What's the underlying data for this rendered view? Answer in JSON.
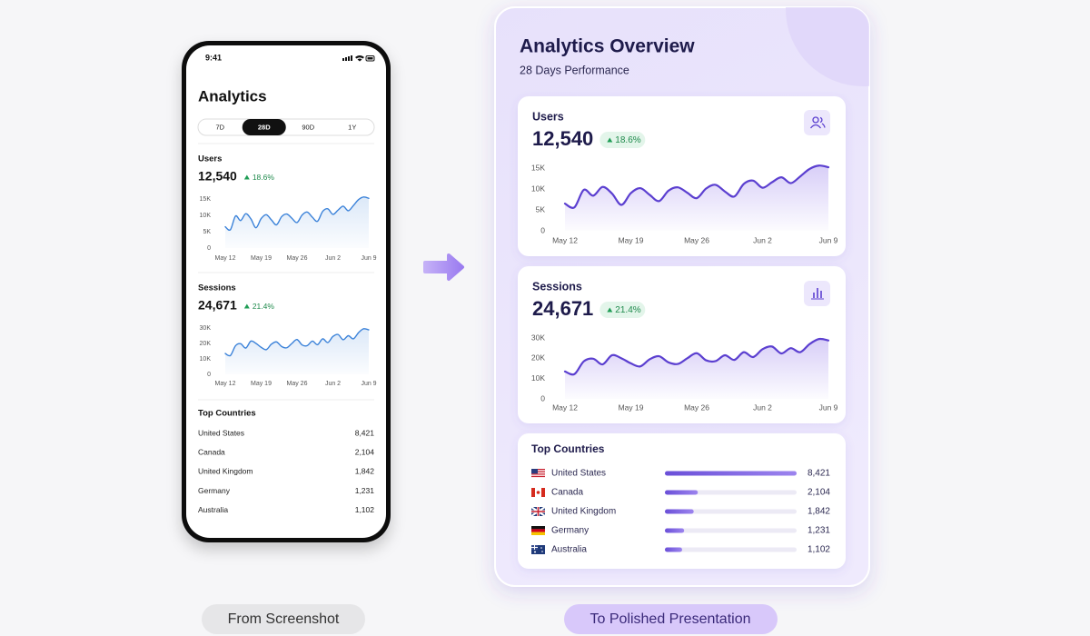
{
  "phone": {
    "time": "9:41",
    "title": "Analytics",
    "tabs": [
      "7D",
      "28D",
      "90D",
      "1Y"
    ],
    "active_tab": 1
  },
  "presentation": {
    "title": "Analytics Overview",
    "subtitle": "28 Days Performance"
  },
  "chart_data": [
    {
      "type": "line",
      "title": "Users",
      "total": "12,540",
      "change": "18.6%",
      "color": "#5b3fd0",
      "phone_color": "#3b82d9",
      "categories": [
        "May 12",
        null,
        null,
        null,
        null,
        null,
        null,
        "May 19",
        null,
        null,
        null,
        null,
        null,
        null,
        "May 26",
        null,
        null,
        null,
        null,
        null,
        null,
        "Jun 2",
        null,
        null,
        null,
        null,
        null,
        null,
        "Jun 9"
      ],
      "values": [
        6500,
        5600,
        9800,
        8400,
        10500,
        8900,
        6200,
        9000,
        10200,
        8600,
        7100,
        9600,
        10400,
        9100,
        7800,
        10100,
        11000,
        9400,
        8200,
        11200,
        12000,
        10300,
        11600,
        12800,
        11400,
        13000,
        14800,
        15600,
        15200
      ],
      "ylim": [
        0,
        15000
      ],
      "yticks": [
        0,
        {
          "value": 5000,
          "label": "5K"
        },
        {
          "value": 10000,
          "label": "10K"
        },
        {
          "value": 15000,
          "label": "15K"
        }
      ]
    },
    {
      "type": "line",
      "title": "Sessions",
      "total": "24,671",
      "change": "21.4%",
      "color": "#5b3fd0",
      "phone_color": "#3b82d9",
      "categories": [
        "May 12",
        null,
        null,
        null,
        null,
        null,
        null,
        "May 19",
        null,
        null,
        null,
        null,
        null,
        null,
        "May 26",
        null,
        null,
        null,
        null,
        null,
        null,
        "Jun 2",
        null,
        null,
        null,
        null,
        null,
        null,
        "Jun 9"
      ],
      "values": [
        13500,
        12200,
        18500,
        19800,
        17000,
        21500,
        20000,
        17500,
        16000,
        19500,
        21000,
        18000,
        17200,
        20000,
        22500,
        19000,
        18600,
        21500,
        19200,
        23000,
        20600,
        24500,
        25800,
        22400,
        25000,
        23000,
        27000,
        29500,
        28800
      ],
      "ylim": [
        0,
        30000
      ],
      "yticks": [
        0,
        {
          "value": 10000,
          "label": "10K"
        },
        {
          "value": 20000,
          "label": "20K"
        },
        {
          "value": 30000,
          "label": "30K"
        }
      ]
    }
  ],
  "top_countries": {
    "title": "Top Countries",
    "rows": [
      {
        "country": "United States",
        "value": 8421,
        "label": "8,421"
      },
      {
        "country": "Canada",
        "value": 2104,
        "label": "2,104"
      },
      {
        "country": "United Kingdom",
        "value": 1842,
        "label": "1,842"
      },
      {
        "country": "Germany",
        "value": 1231,
        "label": "1,231"
      },
      {
        "country": "Australia",
        "value": 1102,
        "label": "1,102"
      }
    ]
  },
  "captions": [
    "From Screenshot",
    "To Polished Presentation"
  ]
}
